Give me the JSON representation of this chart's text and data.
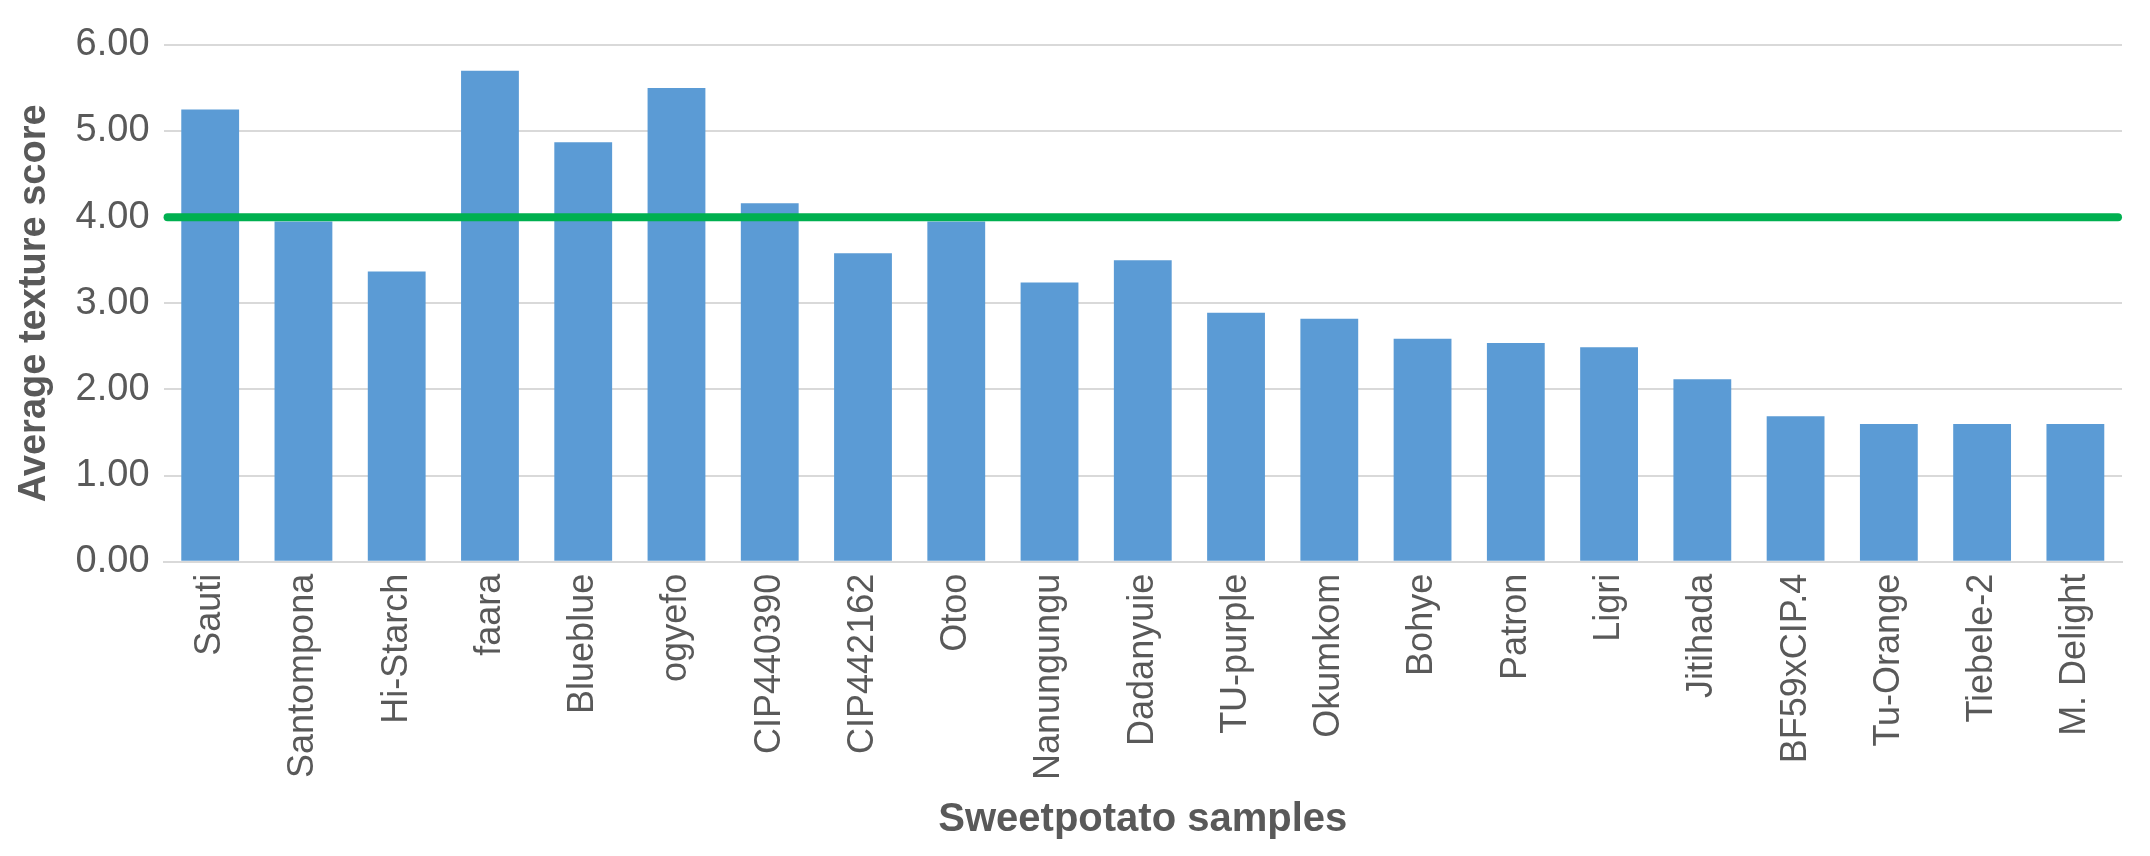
{
  "chart_data": {
    "type": "bar",
    "xlabel": "Sweetpotato samples",
    "ylabel": "Average texture score",
    "categories": [
      "Sauti",
      "Santompona",
      "Hi-Starch",
      "faara",
      "Blueblue",
      "ogyefo",
      "CIP440390",
      "CIP442162",
      "Otoo",
      "Nanungungu",
      "Dadanyuie",
      "TU-purple",
      "Okumkom",
      "Bohye",
      "Patron",
      "Ligri",
      "Jitihada",
      "BF59xCIP.4",
      "Tu-Orange",
      "Tiebele-2",
      "M. Delight"
    ],
    "values": [
      5.25,
      3.95,
      3.37,
      5.7,
      4.87,
      5.5,
      4.16,
      3.58,
      3.95,
      3.24,
      3.5,
      2.89,
      2.82,
      2.59,
      2.54,
      2.49,
      2.12,
      1.69,
      1.6,
      1.6,
      1.6
    ],
    "color": "#5b9bd5",
    "ylim": [
      0,
      6
    ],
    "yticks": [
      {
        "value": 0,
        "label": "0.00"
      },
      {
        "value": 1,
        "label": "1.00"
      },
      {
        "value": 2,
        "label": "2.00"
      },
      {
        "value": 3,
        "label": "3.00"
      },
      {
        "value": 4,
        "label": "4.00"
      },
      {
        "value": 5,
        "label": "5.00"
      },
      {
        "value": 6,
        "label": "6.00"
      }
    ],
    "ref_lines": [
      {
        "axis": "y",
        "value": 4,
        "color": "#00b050"
      }
    ],
    "grid": "y",
    "legend": false
  }
}
